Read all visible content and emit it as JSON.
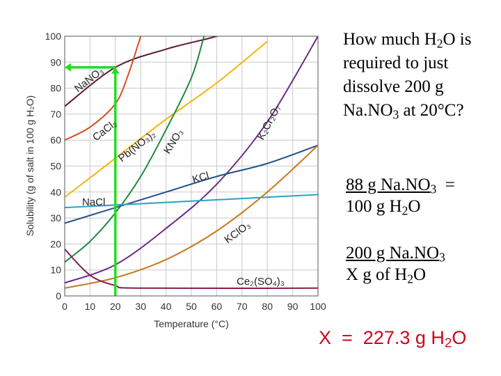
{
  "chart_data": {
    "type": "line",
    "xlabel": "Temperature (°C)",
    "ylabel": "Solubility (g of salt in 100 g H₂O)",
    "xlim": [
      0,
      100
    ],
    "ylim": [
      0,
      100
    ],
    "xticks": [
      0,
      10,
      20,
      30,
      40,
      50,
      60,
      70,
      80,
      90,
      100
    ],
    "yticks": [
      0,
      10,
      20,
      30,
      40,
      50,
      60,
      70,
      80,
      90,
      100
    ],
    "grid": true,
    "series": [
      {
        "name": "NaNO₃",
        "color": "#5a1a3a",
        "x": [
          0,
          20,
          40,
          60,
          75
        ],
        "y": [
          73,
          88,
          95,
          100,
          105
        ]
      },
      {
        "name": "CaCl₂",
        "color": "#d2501a",
        "x": [
          0,
          10,
          20,
          25,
          30
        ],
        "y": [
          60,
          65,
          74,
          85,
          100
        ]
      },
      {
        "name": "Pb(NO₃)₂",
        "color": "#f5b40a",
        "x": [
          0,
          20,
          40,
          60,
          80
        ],
        "y": [
          38,
          53,
          68,
          82,
          98
        ]
      },
      {
        "name": "KNO₃",
        "color": "#1e8a3c",
        "x": [
          0,
          10,
          20,
          30,
          40,
          50,
          55
        ],
        "y": [
          13,
          21,
          32,
          46,
          64,
          84,
          100
        ]
      },
      {
        "name": "K₂Cr₂O₇",
        "color": "#6a2a8a",
        "x": [
          0,
          20,
          40,
          60,
          80,
          100
        ],
        "y": [
          5,
          12,
          26,
          43,
          67,
          100
        ]
      },
      {
        "name": "KCl",
        "color": "#1f4e8c",
        "x": [
          0,
          20,
          40,
          60,
          80,
          100
        ],
        "y": [
          28,
          34,
          40,
          46,
          51,
          58
        ]
      },
      {
        "name": "NaCl",
        "color": "#2aa0c8",
        "x": [
          0,
          100
        ],
        "y": [
          34,
          39
        ]
      },
      {
        "name": "KClO₃",
        "color": "#c8781e",
        "x": [
          0,
          20,
          40,
          60,
          80,
          100
        ],
        "y": [
          3,
          7,
          14,
          25,
          40,
          58
        ]
      },
      {
        "name": "Ce₂(SO₄)₃",
        "color": "#8a1a4a",
        "x": [
          0,
          10,
          20,
          30,
          100
        ],
        "y": [
          18,
          8,
          4,
          3,
          3
        ]
      }
    ],
    "guide": {
      "color": "#22dd22",
      "x": 20,
      "y": 88
    }
  },
  "question": {
    "line1_a": "How much H",
    "line1_sub": "2",
    "line1_b": "O is",
    "line2": "required to just",
    "line3": "dissolve 200 g",
    "line4_a": "Na.NO",
    "line4_sub": "3",
    "line4_b": " at 20°C?"
  },
  "ratio1": {
    "num_a": "88 g Na.NO",
    "num_sub": "3",
    "eq": "  =",
    "den_a": "100 g H",
    "den_sub": "2",
    "den_b": "O"
  },
  "ratio2": {
    "num_a": "200 g Na.NO",
    "num_sub": "3",
    "den_a": "X g of H",
    "den_sub": "2",
    "den_b": "O"
  },
  "answer": {
    "prefix": "X  =  227.3 g H",
    "sub": "2",
    "suffix": "O"
  }
}
